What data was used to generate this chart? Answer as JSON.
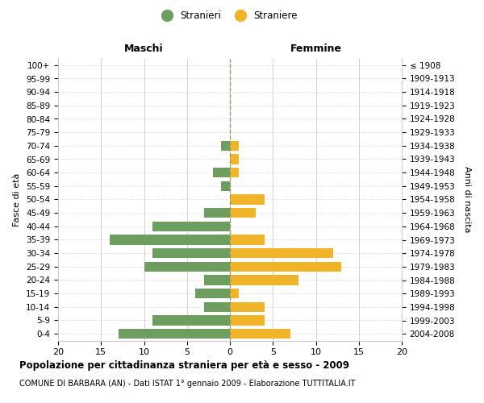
{
  "age_groups": [
    "100+",
    "95-99",
    "90-94",
    "85-89",
    "80-84",
    "75-79",
    "70-74",
    "65-69",
    "60-64",
    "55-59",
    "50-54",
    "45-49",
    "40-44",
    "35-39",
    "30-34",
    "25-29",
    "20-24",
    "15-19",
    "10-14",
    "5-9",
    "0-4"
  ],
  "birth_years": [
    "≤ 1908",
    "1909-1913",
    "1914-1918",
    "1919-1923",
    "1924-1928",
    "1929-1933",
    "1934-1938",
    "1939-1943",
    "1944-1948",
    "1949-1953",
    "1954-1958",
    "1959-1963",
    "1964-1968",
    "1969-1973",
    "1974-1978",
    "1979-1983",
    "1984-1988",
    "1989-1993",
    "1994-1998",
    "1999-2003",
    "2004-2008"
  ],
  "males": [
    0,
    0,
    0,
    0,
    0,
    0,
    1,
    0,
    2,
    1,
    0,
    3,
    9,
    14,
    9,
    10,
    3,
    4,
    3,
    9,
    13
  ],
  "females": [
    0,
    0,
    0,
    0,
    0,
    0,
    1,
    1,
    1,
    0,
    4,
    3,
    0,
    4,
    12,
    13,
    8,
    1,
    4,
    4,
    7
  ],
  "male_color": "#6e9e5f",
  "female_color": "#f0b429",
  "bar_height": 0.75,
  "xlim": [
    -20,
    20
  ],
  "xlabel_left": "Maschi",
  "xlabel_right": "Femmine",
  "ylabel_left": "Fasce di età",
  "ylabel_right": "Anni di nascita",
  "legend_male": "Stranieri",
  "legend_female": "Straniere",
  "title": "Popolazione per cittadinanza straniera per età e sesso - 2009",
  "subtitle": "COMUNE DI BARBARA (AN) - Dati ISTAT 1° gennaio 2009 - Elaborazione TUTTITALIA.IT",
  "grid_color": "#cccccc",
  "center_line_color": "#999966",
  "background_color": "#ffffff"
}
